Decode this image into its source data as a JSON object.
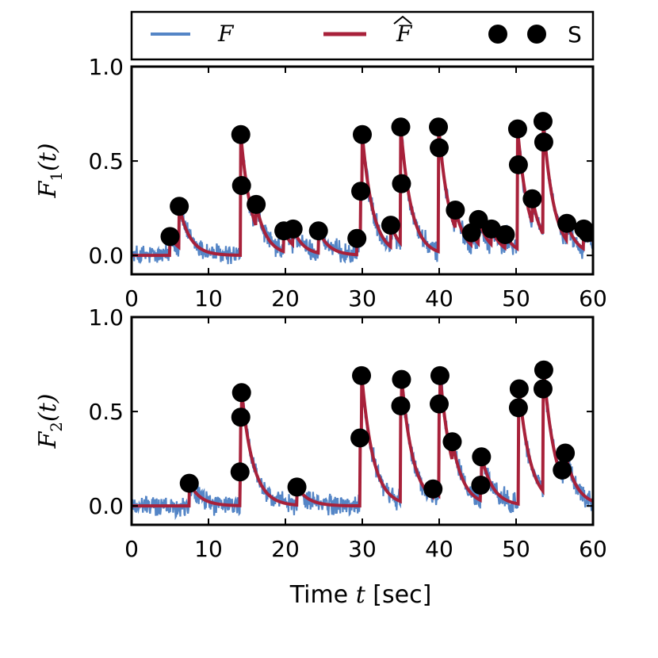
{
  "legend": {
    "entries": [
      {
        "label": "F",
        "kind": "line",
        "color": "#5485c6"
      },
      {
        "label": "F",
        "hat": true,
        "kind": "line",
        "color": "#a8213a"
      },
      {
        "label": "S",
        "kind": "marker",
        "color": "#000000"
      }
    ]
  },
  "xlabel_prefix": "Time ",
  "xlabel_var": "t",
  "xlabel_suffix": " [sec]",
  "colors": {
    "observed": "#5485c6",
    "fit": "#a8213a",
    "spike": "#000000"
  },
  "chart_data": [
    {
      "type": "line",
      "ylabel": "F1(t)",
      "ylabel_main": "F",
      "ylabel_sub": "1",
      "ylabel_arg": "(t)",
      "xlim": [
        0,
        60
      ],
      "ylim": [
        -0.1,
        1.0
      ],
      "xticks": [
        0,
        10,
        20,
        30,
        40,
        50,
        60
      ],
      "yticks": [
        0.0,
        0.5,
        1.0
      ],
      "ytick_labels": [
        "0.0",
        "0.5",
        "1.0"
      ],
      "tau": 1.4,
      "noise_amp": 0.045,
      "spike_times": [
        5.0,
        6.2,
        14.2,
        14.3,
        16.2,
        19.8,
        21.0,
        24.3,
        29.3,
        29.8,
        30.0,
        33.7,
        35.0,
        35.1,
        39.9,
        40.0,
        42.1,
        44.2,
        45.1,
        46.8,
        48.6,
        50.2,
        50.3,
        52.1,
        53.5,
        53.6,
        56.6,
        58.8,
        59.3
      ],
      "spike_y": [
        0.1,
        0.26,
        0.64,
        0.37,
        0.27,
        0.13,
        0.14,
        0.13,
        0.09,
        0.34,
        0.64,
        0.16,
        0.68,
        0.38,
        0.68,
        0.57,
        0.24,
        0.12,
        0.19,
        0.14,
        0.11,
        0.67,
        0.48,
        0.3,
        0.71,
        0.6,
        0.17,
        0.14,
        0.12
      ]
    },
    {
      "type": "line",
      "ylabel": "F2(t)",
      "ylabel_main": "F",
      "ylabel_sub": "2",
      "ylabel_arg": "(t)",
      "xlim": [
        0,
        60
      ],
      "ylim": [
        -0.1,
        1.0
      ],
      "xticks": [
        0,
        10,
        20,
        30,
        40,
        50,
        60
      ],
      "yticks": [
        0.0,
        0.5,
        1.0
      ],
      "ytick_labels": [
        "0.0",
        "0.5",
        "1.0"
      ],
      "tau": 1.5,
      "noise_amp": 0.045,
      "spike_times": [
        7.5,
        14.1,
        14.2,
        14.3,
        21.5,
        29.7,
        29.9,
        35.0,
        35.1,
        39.2,
        40.0,
        40.1,
        41.7,
        45.4,
        45.5,
        50.3,
        50.4,
        53.5,
        53.6,
        56.0,
        56.4
      ],
      "spike_y": [
        0.12,
        0.18,
        0.47,
        0.6,
        0.1,
        0.36,
        0.69,
        0.53,
        0.67,
        0.09,
        0.54,
        0.69,
        0.34,
        0.11,
        0.26,
        0.52,
        0.62,
        0.62,
        0.72,
        0.19,
        0.28
      ]
    }
  ]
}
